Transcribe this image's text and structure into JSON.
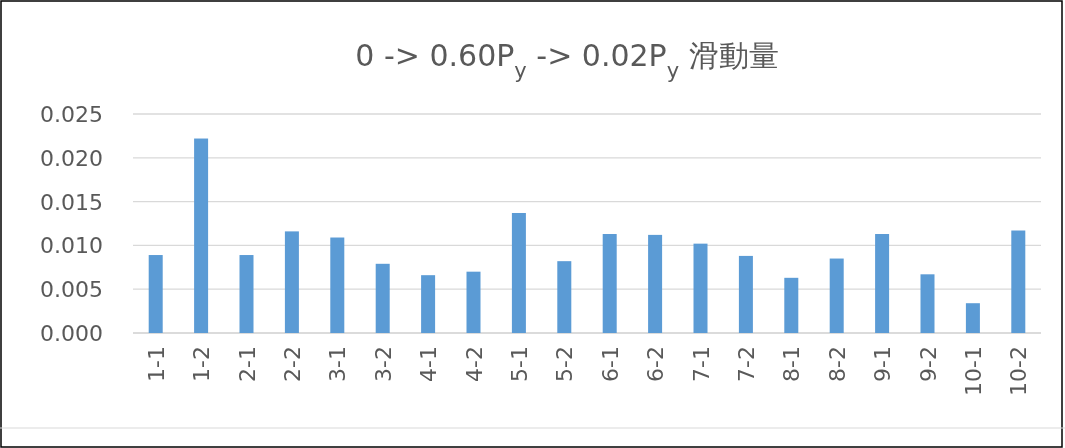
{
  "chart_data": {
    "type": "bar",
    "title": "0 -> 0.60P$_{y}$ -> 0.02P$_{y}$ 滑動量",
    "categories": [
      "1-1",
      "1-2",
      "2-1",
      "2-2",
      "3-1",
      "3-2",
      "4-1",
      "4-2",
      "5-1",
      "5-2",
      "6-1",
      "6-2",
      "7-1",
      "7-2",
      "8-1",
      "8-2",
      "9-1",
      "9-2",
      "10-1",
      "10-2"
    ],
    "values": [
      0.0089,
      0.0222,
      0.0089,
      0.0116,
      0.0109,
      0.0079,
      0.0066,
      0.007,
      0.0137,
      0.0082,
      0.0113,
      0.0112,
      0.0102,
      0.0088,
      0.0063,
      0.0085,
      0.0113,
      0.0067,
      0.0034,
      0.0117
    ],
    "color": "#5b9bd5",
    "ylim": [
      0,
      0.025
    ],
    "yticks": [
      {
        "value": 0,
        "label": "0.000"
      },
      {
        "value": 0.005,
        "label": "0.005"
      },
      {
        "value": 0.01,
        "label": "0.010"
      },
      {
        "value": 0.015,
        "label": "0.015"
      },
      {
        "value": 0.02,
        "label": "0.020"
      },
      {
        "value": 0.025,
        "label": "0.025"
      }
    ],
    "grid": "y"
  }
}
